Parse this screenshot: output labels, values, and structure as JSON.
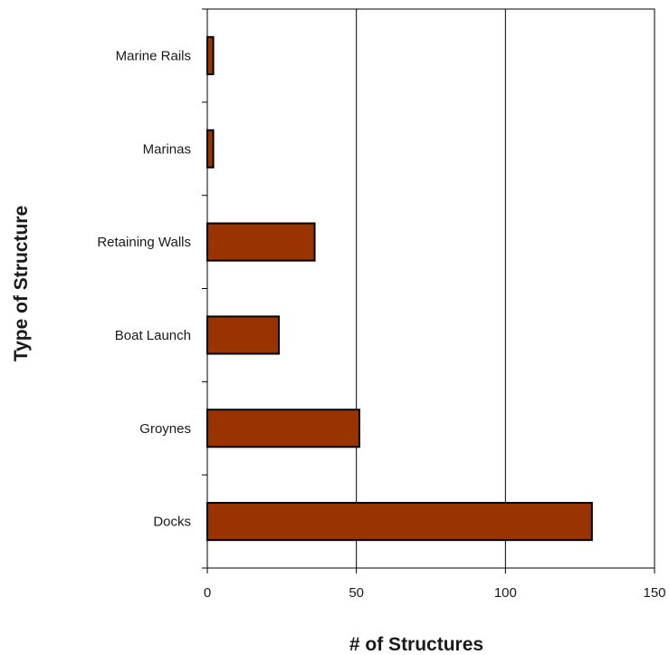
{
  "chart_data": {
    "type": "bar",
    "orientation": "horizontal",
    "categories": [
      "Docks",
      "Groynes",
      "Boat Launch",
      "Retaining Walls",
      "Marinas",
      "Marine Rails"
    ],
    "values": [
      129,
      51,
      24,
      36,
      2,
      2
    ],
    "xlabel": "# of Structures",
    "ylabel": "Type of Structure",
    "xlim": [
      0,
      150
    ],
    "xticks": [
      "0",
      "50",
      "100",
      "150"
    ],
    "grid": "vertical major gridlines",
    "legend": "none",
    "bar_color": "#993300"
  }
}
